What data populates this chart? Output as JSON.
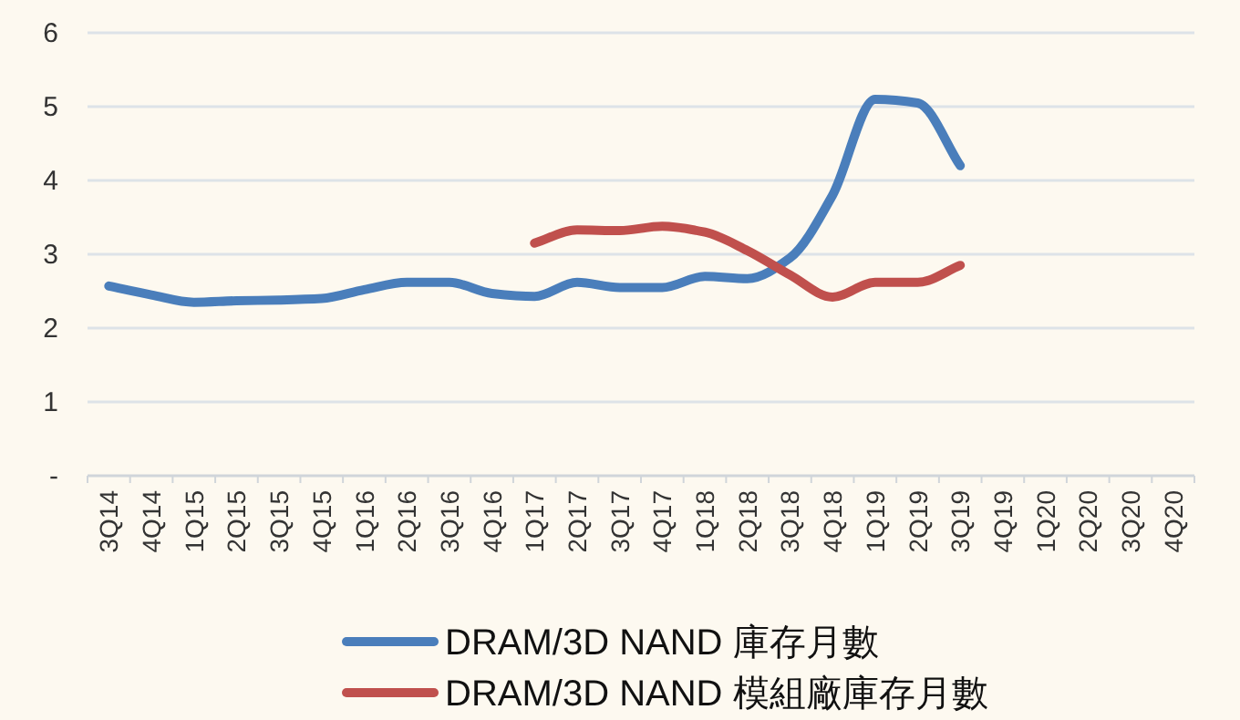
{
  "chart_data": {
    "type": "line",
    "categories": [
      "3Q14",
      "4Q14",
      "1Q15",
      "2Q15",
      "3Q15",
      "4Q15",
      "1Q16",
      "2Q16",
      "3Q16",
      "4Q16",
      "1Q17",
      "2Q17",
      "3Q17",
      "4Q17",
      "1Q18",
      "2Q18",
      "3Q18",
      "4Q18",
      "1Q19",
      "2Q19",
      "3Q19",
      "4Q19",
      "1Q20",
      "2Q20",
      "3Q20",
      "4Q20"
    ],
    "series": [
      {
        "name": "DRAM/3D NAND 庫存月數",
        "color": "#4a7ebb",
        "values": [
          2.57,
          2.45,
          2.35,
          2.37,
          2.38,
          2.4,
          2.52,
          2.62,
          2.62,
          2.47,
          2.43,
          2.62,
          2.55,
          2.55,
          2.7,
          2.67,
          2.95,
          3.8,
          5.1,
          5.05,
          4.2,
          null,
          null,
          null,
          null,
          null
        ]
      },
      {
        "name": "DRAM/3D NAND 模組廠庫存月數",
        "color": "#c0504d",
        "values": [
          null,
          null,
          null,
          null,
          null,
          null,
          null,
          null,
          null,
          null,
          3.15,
          3.33,
          3.32,
          3.38,
          3.3,
          3.05,
          2.72,
          2.42,
          2.62,
          2.62,
          2.85,
          null,
          null,
          null,
          null,
          null
        ]
      }
    ],
    "ylim": [
      0,
      6
    ],
    "yticks": [
      {
        "value": 0,
        "label": "-"
      },
      1,
      2,
      3,
      4,
      5,
      6
    ],
    "grid": "y",
    "legend": "bottom",
    "marker": "none",
    "line_style": "solid"
  }
}
